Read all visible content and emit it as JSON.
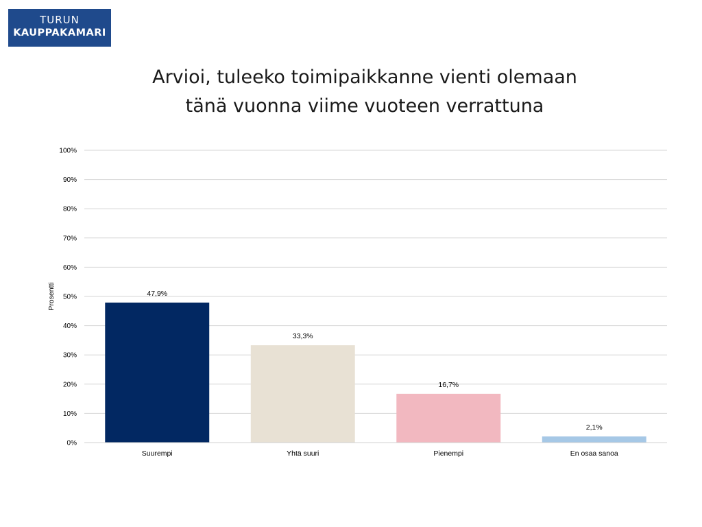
{
  "logo": {
    "line1": "TURUN",
    "line2": "KAUPPAKAMARI"
  },
  "colors": {
    "logo_bg": "#1f4a8c",
    "bar_colors": [
      "#022862",
      "#e8e1d4",
      "#f2b8c0",
      "#a6c8e6"
    ],
    "grid": "#d4d4d4"
  },
  "chart_data": {
    "type": "bar",
    "title_lines": [
      "Arvioi, tuleeko toimipaikkanne vienti olemaan",
      "tänä vuonna viime vuoteen verrattuna"
    ],
    "categories": [
      "Suurempi",
      "Yhtä suuri",
      "Pienempi",
      "En osaa sanoa"
    ],
    "values": [
      47.9,
      33.3,
      16.7,
      2.1
    ],
    "data_labels": [
      "47,9%",
      "33,3%",
      "16,7%",
      "2,1%"
    ],
    "ylabel": "Prosentti",
    "xlabel": "",
    "ylim": [
      0,
      100
    ],
    "yticks": [
      0,
      10,
      20,
      30,
      40,
      50,
      60,
      70,
      80,
      90,
      100
    ],
    "ytick_labels": [
      "0%",
      "10%",
      "20%",
      "30%",
      "40%",
      "50%",
      "60%",
      "70%",
      "80%",
      "90%",
      "100%"
    ],
    "grid": true,
    "legend": "none"
  }
}
